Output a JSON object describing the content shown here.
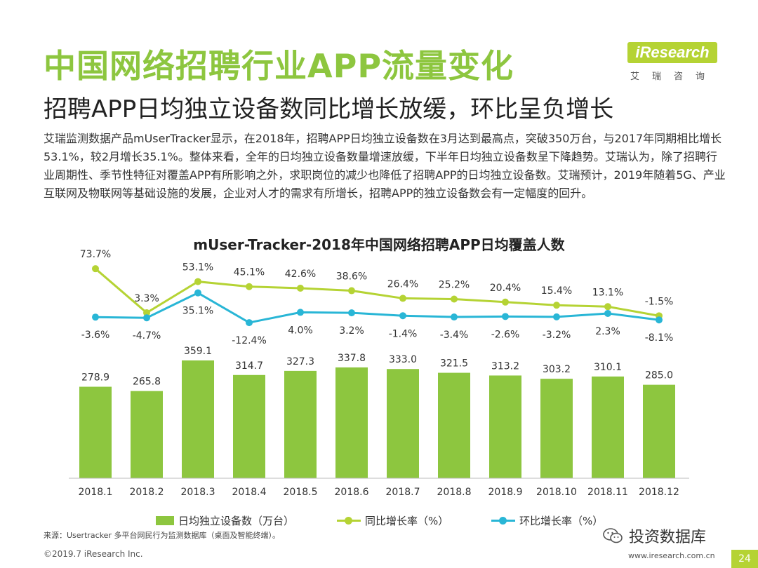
{
  "slide": {
    "title": "中国网络招聘行业APP流量变化",
    "subtitle": "招聘APP日均独立设备数同比增长放缓，环比呈负增长",
    "body": "艾瑞监测数据产品mUserTracker显示，在2018年，招聘APP日均独立设备数在3月达到最高点，突破350万台，与2017年同期相比增长53.1%，较2月增长35.1%。整体来看，全年的日均独立设备数量增速放缓，下半年日均独立设备数呈下降趋势。艾瑞认为，除了招聘行业周期性、季节性特征对覆盖APP有所影响之外，求职岗位的减少也降低了招聘APP的日均独立设备数。艾瑞预计，2019年随着5G、产业互联网及物联网等基础设施的发展，企业对人才的需求有所增长，招聘APP的独立设备数会有一定幅度的回升。",
    "source": "来源：Usertracker 多平台网民行为监测数据库（桌面及智能终端）。",
    "copyright": "©2019.7 iResearch Inc.",
    "site": "www.iresearch.com.cn",
    "page_number": "24",
    "watermark": "投资数据库"
  },
  "logo": {
    "wordmark": "iResearch",
    "chinese": "艾瑞咨询"
  },
  "colors": {
    "bar": "#8dc63f",
    "yoy_line": "#b5d334",
    "mom_line": "#29b6d6",
    "accent": "#b5d334"
  },
  "chart_data": {
    "type": "bar",
    "title": "mUser-Tracker-2018年中国网络招聘APP日均覆盖人数",
    "categories": [
      "2018.1",
      "2018.2",
      "2018.3",
      "2018.4",
      "2018.5",
      "2018.6",
      "2018.7",
      "2018.8",
      "2018.9",
      "2018.10",
      "2018.11",
      "2018.12"
    ],
    "series": [
      {
        "name": "日均独立设备数（万台）",
        "type": "bar",
        "values": [
          278.9,
          265.8,
          359.1,
          314.7,
          327.3,
          337.8,
          333.0,
          321.5,
          313.2,
          303.2,
          310.1,
          285.0
        ],
        "labels": [
          "278.9",
          "265.8",
          "359.1",
          "314.7",
          "327.3",
          "337.8",
          "333.0",
          "321.5",
          "313.2",
          "303.2",
          "310.1",
          "285.0"
        ]
      },
      {
        "name": "同比增长率（%）",
        "type": "line",
        "values": [
          73.7,
          3.3,
          53.1,
          45.1,
          42.6,
          38.6,
          26.4,
          25.2,
          20.4,
          15.4,
          13.1,
          -1.5
        ],
        "labels": [
          "73.7%",
          "3.3%",
          "53.1%",
          "45.1%",
          "42.6%",
          "38.6%",
          "26.4%",
          "25.2%",
          "20.4%",
          "15.4%",
          "13.1%",
          "-1.5%"
        ]
      },
      {
        "name": "环比增长率（%）",
        "type": "line",
        "values": [
          -3.6,
          -4.7,
          35.1,
          -12.4,
          4.0,
          3.2,
          -1.4,
          -3.4,
          -2.6,
          -3.2,
          2.3,
          -8.1
        ],
        "labels": [
          "-3.6%",
          "-4.7%",
          "35.1%",
          "-12.4%",
          "4.0%",
          "3.2%",
          "-1.4%",
          "-3.4%",
          "-2.6%",
          "-3.2%",
          "2.3%",
          "-8.1%"
        ]
      }
    ],
    "legend_position": "bottom",
    "grid": false
  }
}
